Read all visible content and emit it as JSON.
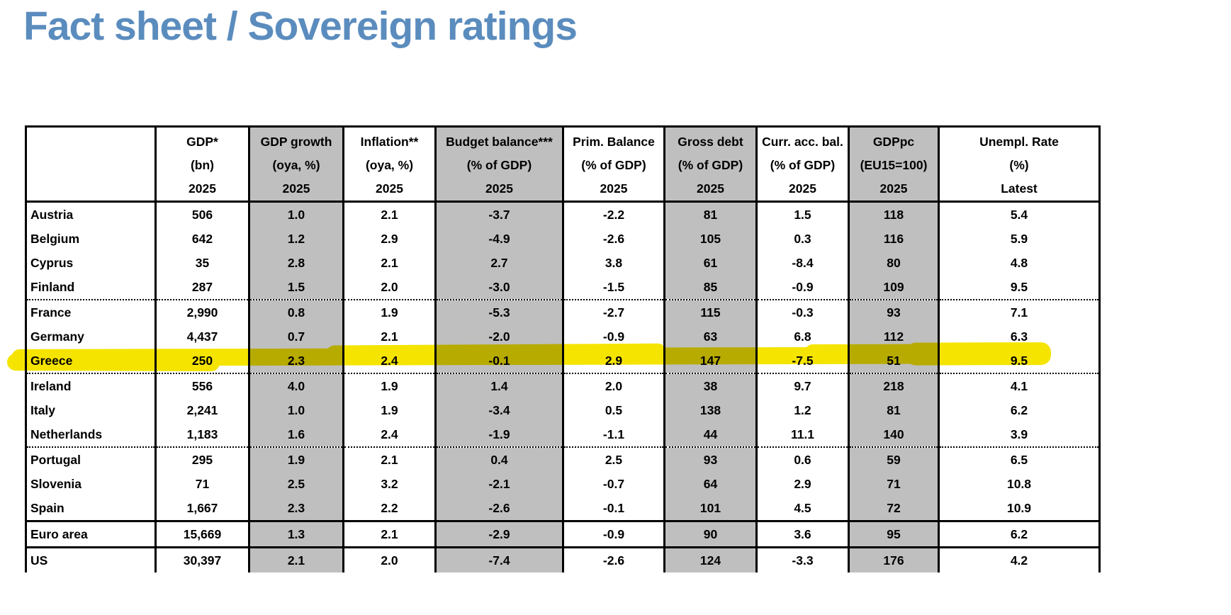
{
  "page": {
    "title": "Fact sheet / Sovereign ratings"
  },
  "colors": {
    "title_blue": "#5B8CBE",
    "column_shade_gray": "#BFBFBF",
    "highlight_yellow": "#F5E400",
    "border_black": "#000000"
  },
  "highlight": {
    "row": "Greece",
    "style": "yellow-marker"
  },
  "table": {
    "columns": [
      {
        "line1": "",
        "line2": "",
        "line3": "",
        "shaded": false
      },
      {
        "line1": "GDP*",
        "line2": "(bn)",
        "line3": "2025",
        "shaded": false
      },
      {
        "line1": "GDP growth",
        "line2": "(oya, %)",
        "line3": "2025",
        "shaded": true
      },
      {
        "line1": "Inflation**",
        "line2": "(oya, %)",
        "line3": "2025",
        "shaded": false
      },
      {
        "line1": "Budget balance***",
        "line2": "(% of GDP)",
        "line3": "2025",
        "shaded": true
      },
      {
        "line1": "Prim. Balance",
        "line2": "(% of GDP)",
        "line3": "2025",
        "shaded": false
      },
      {
        "line1": "Gross debt",
        "line2": "(% of GDP)",
        "line3": "2025",
        "shaded": true
      },
      {
        "line1": "Curr. acc. bal.",
        "line2": "(% of GDP)",
        "line3": "2025",
        "shaded": false
      },
      {
        "line1": "GDPpc",
        "line2": "(EU15=100)",
        "line3": "2025",
        "shaded": true
      },
      {
        "line1": "Unempl. Rate",
        "line2": "(%)",
        "line3": "Latest",
        "shaded": false
      }
    ],
    "rows": [
      {
        "label": "Austria",
        "values": [
          "506",
          "1.0",
          "2.1",
          "-3.7",
          "-2.2",
          "81",
          "1.5",
          "118",
          "5.4"
        ],
        "separator_after": "none",
        "highlighted": false
      },
      {
        "label": "Belgium",
        "values": [
          "642",
          "1.2",
          "2.9",
          "-4.9",
          "-2.6",
          "105",
          "0.3",
          "116",
          "5.9"
        ],
        "separator_after": "none",
        "highlighted": false
      },
      {
        "label": "Cyprus",
        "values": [
          "35",
          "2.8",
          "2.1",
          "2.7",
          "3.8",
          "61",
          "-8.4",
          "80",
          "4.8"
        ],
        "separator_after": "none",
        "highlighted": false
      },
      {
        "label": "Finland",
        "values": [
          "287",
          "1.5",
          "2.0",
          "-3.0",
          "-1.5",
          "85",
          "-0.9",
          "109",
          "9.5"
        ],
        "separator_after": "dotted",
        "highlighted": false
      },
      {
        "label": "France",
        "values": [
          "2,990",
          "0.8",
          "1.9",
          "-5.3",
          "-2.7",
          "115",
          "-0.3",
          "93",
          "7.1"
        ],
        "separator_after": "none",
        "highlighted": false
      },
      {
        "label": "Germany",
        "values": [
          "4,437",
          "0.7",
          "2.1",
          "-2.0",
          "-0.9",
          "63",
          "6.8",
          "112",
          "6.3"
        ],
        "separator_after": "none",
        "highlighted": false
      },
      {
        "label": "Greece",
        "values": [
          "250",
          "2.3",
          "2.4",
          "-0.1",
          "2.9",
          "147",
          "-7.5",
          "51",
          "9.5"
        ],
        "separator_after": "dotted",
        "highlighted": true
      },
      {
        "label": "Ireland",
        "values": [
          "556",
          "4.0",
          "1.9",
          "1.4",
          "2.0",
          "38",
          "9.7",
          "218",
          "4.1"
        ],
        "separator_after": "none",
        "highlighted": false
      },
      {
        "label": "Italy",
        "values": [
          "2,241",
          "1.0",
          "1.9",
          "-3.4",
          "0.5",
          "138",
          "1.2",
          "81",
          "6.2"
        ],
        "separator_after": "none",
        "highlighted": false
      },
      {
        "label": "Netherlands",
        "values": [
          "1,183",
          "1.6",
          "2.4",
          "-1.9",
          "-1.1",
          "44",
          "11.1",
          "140",
          "3.9"
        ],
        "separator_after": "dotted",
        "highlighted": false
      },
      {
        "label": "Portugal",
        "values": [
          "295",
          "1.9",
          "2.1",
          "0.4",
          "2.5",
          "93",
          "0.6",
          "59",
          "6.5"
        ],
        "separator_after": "none",
        "highlighted": false
      },
      {
        "label": "Slovenia",
        "values": [
          "71",
          "2.5",
          "3.2",
          "-2.1",
          "-0.7",
          "64",
          "2.9",
          "71",
          "10.8"
        ],
        "separator_after": "none",
        "highlighted": false
      },
      {
        "label": "Spain",
        "values": [
          "1,667",
          "2.3",
          "2.2",
          "-2.6",
          "-0.1",
          "101",
          "4.5",
          "72",
          "10.9"
        ],
        "separator_after": "thick",
        "highlighted": false
      },
      {
        "label": "Euro area",
        "values": [
          "15,669",
          "1.3",
          "2.1",
          "-2.9",
          "-0.9",
          "90",
          "3.6",
          "95",
          "6.2"
        ],
        "separator_after": "thick",
        "highlighted": false
      },
      {
        "label": "US",
        "values": [
          "30,397",
          "2.1",
          "2.0",
          "-7.4",
          "-2.6",
          "124",
          "-3.3",
          "176",
          "4.2"
        ],
        "separator_after": "none",
        "highlighted": false
      }
    ]
  }
}
